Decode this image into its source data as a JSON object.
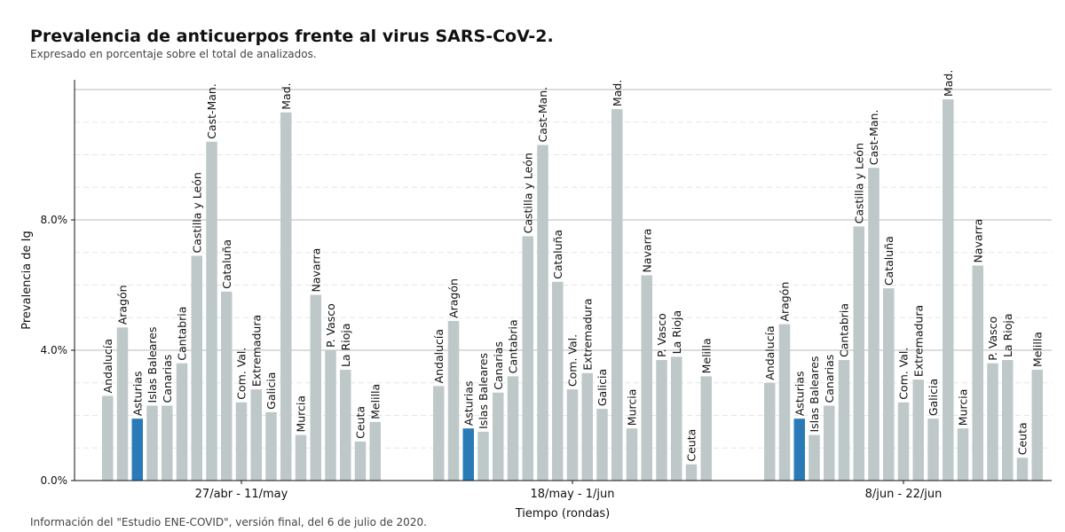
{
  "title": "Prevalencia de anticuerpos frente al virus SARS-CoV-2.",
  "subtitle": "Expresado en porcentaje sobre el total de analizados.",
  "caption": "Información del \"Estudio ENE-COVID\", versión final, del 6 de julio de 2020.",
  "colors": {
    "bar": "#bec8c8",
    "highlight": "#2a7ab8",
    "major_grid": "#bbbbbb",
    "minor_grid": "#e6e6e6"
  },
  "chart_data": {
    "type": "bar",
    "xlabel": "Tiempo (rondas)",
    "ylabel": "Prevalencia de Ig",
    "ylim": [
      0,
      12.3
    ],
    "yticks": [
      {
        "value": 0,
        "label": "0.0%"
      },
      {
        "value": 4,
        "label": "4.0%"
      },
      {
        "value": 8,
        "label": "8.0%"
      }
    ],
    "grid": true,
    "highlight": "Asturias",
    "categories": [
      "Andalucía",
      "Aragón",
      "Asturias",
      "Islas Baleares",
      "Canarias",
      "Cantabria",
      "Castilla y León",
      "Cast-Man.",
      "Cataluña",
      "Com. Val.",
      "Extremadura",
      "Galicia",
      "Mad.",
      "Murcia",
      "Navarra",
      "P. Vasco",
      "La Rioja",
      "Ceuta",
      "Melilla"
    ],
    "groups": [
      {
        "name": "27/abr - 11/may",
        "values": [
          2.6,
          4.7,
          1.9,
          2.3,
          2.3,
          3.6,
          6.9,
          10.4,
          5.8,
          2.4,
          2.8,
          2.1,
          11.3,
          1.4,
          5.7,
          4.0,
          3.4,
          1.2,
          1.8
        ]
      },
      {
        "name": "18/may - 1/jun",
        "values": [
          2.9,
          4.9,
          1.6,
          1.5,
          2.7,
          3.2,
          7.5,
          10.3,
          6.1,
          2.8,
          3.3,
          2.2,
          11.4,
          1.6,
          6.3,
          3.7,
          3.8,
          0.5,
          3.2
        ]
      },
      {
        "name": "8/jun - 22/jun",
        "values": [
          3.0,
          4.8,
          1.9,
          1.4,
          2.3,
          3.7,
          7.8,
          9.6,
          5.9,
          2.4,
          3.1,
          1.9,
          11.7,
          1.6,
          6.6,
          3.6,
          3.7,
          0.7,
          3.4
        ]
      }
    ]
  }
}
